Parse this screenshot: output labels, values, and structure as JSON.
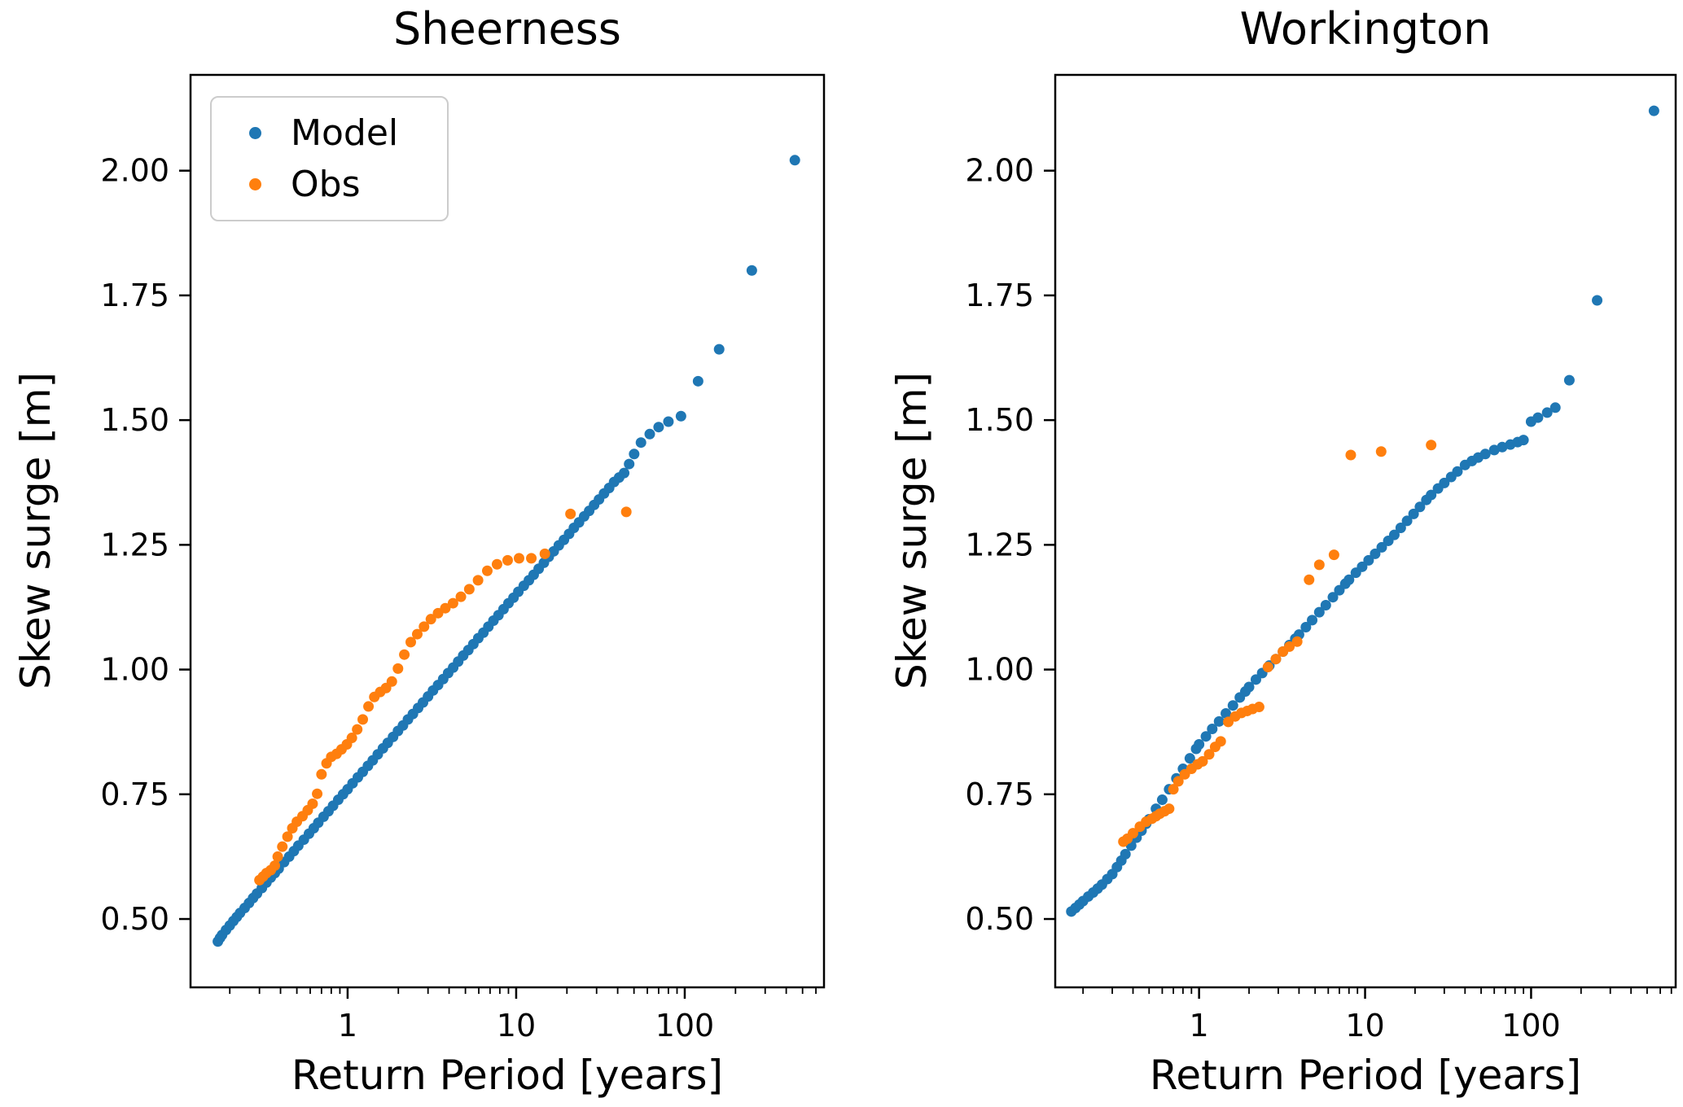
{
  "figure": {
    "background": "#ffffff",
    "text_color": "#000000",
    "axis_color": "#000000"
  },
  "legend": {
    "entries": [
      {
        "label": "Model",
        "color": "#1f77b4"
      },
      {
        "label": "Obs",
        "color": "#ff7f0e"
      }
    ]
  },
  "chart_data": [
    {
      "type": "scatter",
      "title": "Sheerness",
      "xlabel": "Return Period [years]",
      "ylabel": "Skew surge [m]",
      "xscale": "log",
      "xlim": [
        0.117,
        670
      ],
      "ylim": [
        0.363,
        2.192
      ],
      "xticks": [
        1,
        10,
        100
      ],
      "yticks": [
        0.5,
        0.75,
        1.0,
        1.25,
        1.5,
        1.75,
        2.0
      ],
      "grid": false,
      "legend": true,
      "legend_position": "upper-left",
      "series": [
        {
          "name": "Model",
          "color": "#1f77b4",
          "points": [
            [
              0.17,
              0.455
            ],
            [
              0.175,
              0.462
            ],
            [
              0.18,
              0.468
            ],
            [
              0.19,
              0.478
            ],
            [
              0.2,
              0.487
            ],
            [
              0.21,
              0.496
            ],
            [
              0.22,
              0.504
            ],
            [
              0.23,
              0.512
            ],
            [
              0.245,
              0.522
            ],
            [
              0.26,
              0.532
            ],
            [
              0.275,
              0.542
            ],
            [
              0.29,
              0.551
            ],
            [
              0.31,
              0.562
            ],
            [
              0.33,
              0.573
            ],
            [
              0.35,
              0.583
            ],
            [
              0.37,
              0.592
            ],
            [
              0.39,
              0.601
            ],
            [
              0.42,
              0.614
            ],
            [
              0.45,
              0.625
            ],
            [
              0.48,
              0.636
            ],
            [
              0.51,
              0.647
            ],
            [
              0.55,
              0.659
            ],
            [
              0.59,
              0.671
            ],
            [
              0.63,
              0.682
            ],
            [
              0.67,
              0.693
            ],
            [
              0.72,
              0.705
            ],
            [
              0.77,
              0.716
            ],
            [
              0.82,
              0.727
            ],
            [
              0.88,
              0.739
            ],
            [
              0.94,
              0.75
            ],
            [
              1.0,
              0.76
            ],
            [
              1.07,
              0.772
            ],
            [
              1.15,
              0.784
            ],
            [
              1.23,
              0.795
            ],
            [
              1.32,
              0.807
            ],
            [
              1.41,
              0.818
            ],
            [
              1.51,
              0.83
            ],
            [
              1.62,
              0.842
            ],
            [
              1.73,
              0.853
            ],
            [
              1.86,
              0.865
            ],
            [
              1.99,
              0.877
            ],
            [
              2.13,
              0.888
            ],
            [
              2.28,
              0.9
            ],
            [
              2.44,
              0.911
            ],
            [
              2.62,
              0.923
            ],
            [
              2.8,
              0.934
            ],
            [
              3.0,
              0.946
            ],
            [
              3.21,
              0.958
            ],
            [
              3.44,
              0.969
            ],
            [
              3.69,
              0.981
            ],
            [
              3.95,
              0.993
            ],
            [
              4.23,
              1.004
            ],
            [
              4.53,
              1.016
            ],
            [
              4.85,
              1.028
            ],
            [
              5.2,
              1.039
            ],
            [
              5.57,
              1.051
            ],
            [
              5.96,
              1.063
            ],
            [
              6.39,
              1.074
            ],
            [
              6.84,
              1.086
            ],
            [
              7.33,
              1.098
            ],
            [
              7.85,
              1.109
            ],
            [
              8.41,
              1.121
            ],
            [
              9.0,
              1.133
            ],
            [
              9.64,
              1.144
            ],
            [
              10.3,
              1.156
            ],
            [
              11.1,
              1.168
            ],
            [
              11.9,
              1.179
            ],
            [
              12.7,
              1.19
            ],
            [
              13.6,
              1.202
            ],
            [
              14.6,
              1.214
            ],
            [
              15.6,
              1.226
            ],
            [
              16.7,
              1.237
            ],
            [
              17.9,
              1.249
            ],
            [
              19.2,
              1.26
            ],
            [
              20.6,
              1.272
            ],
            [
              22.0,
              1.284
            ],
            [
              23.6,
              1.295
            ],
            [
              25.3,
              1.307
            ],
            [
              27.1,
              1.318
            ],
            [
              29.0,
              1.33
            ],
            [
              31.0,
              1.341
            ],
            [
              33.2,
              1.353
            ],
            [
              35.6,
              1.364
            ],
            [
              38.1,
              1.376
            ],
            [
              40.8,
              1.385
            ],
            [
              43.7,
              1.394
            ],
            [
              46.8,
              1.412
            ],
            [
              50.1,
              1.432
            ],
            [
              55,
              1.455
            ],
            [
              62,
              1.472
            ],
            [
              70,
              1.486
            ],
            [
              80,
              1.497
            ],
            [
              95,
              1.508
            ],
            [
              120,
              1.578
            ],
            [
              160,
              1.642
            ],
            [
              250,
              1.8
            ],
            [
              450,
              2.021
            ]
          ]
        },
        {
          "name": "Obs",
          "color": "#ff7f0e",
          "points": [
            [
              0.3,
              0.578
            ],
            [
              0.315,
              0.585
            ],
            [
              0.33,
              0.592
            ],
            [
              0.35,
              0.598
            ],
            [
              0.37,
              0.607
            ],
            [
              0.385,
              0.625
            ],
            [
              0.41,
              0.645
            ],
            [
              0.44,
              0.665
            ],
            [
              0.47,
              0.682
            ],
            [
              0.5,
              0.695
            ],
            [
              0.54,
              0.706
            ],
            [
              0.58,
              0.718
            ],
            [
              0.62,
              0.731
            ],
            [
              0.66,
              0.751
            ],
            [
              0.7,
              0.79
            ],
            [
              0.75,
              0.812
            ],
            [
              0.8,
              0.825
            ],
            [
              0.86,
              0.831
            ],
            [
              0.92,
              0.84
            ],
            [
              0.99,
              0.85
            ],
            [
              1.06,
              0.863
            ],
            [
              1.14,
              0.88
            ],
            [
              1.23,
              0.9
            ],
            [
              1.33,
              0.926
            ],
            [
              1.44,
              0.945
            ],
            [
              1.56,
              0.955
            ],
            [
              1.69,
              0.963
            ],
            [
              1.83,
              0.976
            ],
            [
              1.99,
              1.002
            ],
            [
              2.17,
              1.03
            ],
            [
              2.37,
              1.055
            ],
            [
              2.59,
              1.071
            ],
            [
              2.84,
              1.086
            ],
            [
              3.12,
              1.101
            ],
            [
              3.44,
              1.113
            ],
            [
              3.8,
              1.123
            ],
            [
              4.22,
              1.133
            ],
            [
              4.7,
              1.146
            ],
            [
              5.27,
              1.161
            ],
            [
              5.94,
              1.179
            ],
            [
              6.74,
              1.198
            ],
            [
              7.7,
              1.211
            ],
            [
              8.9,
              1.219
            ],
            [
              10.4,
              1.223
            ],
            [
              12.3,
              1.223
            ],
            [
              14.8,
              1.232
            ],
            [
              21,
              1.312
            ],
            [
              45,
              1.316
            ]
          ]
        }
      ]
    },
    {
      "type": "scatter",
      "title": "Workington",
      "xlabel": "Return Period [years]",
      "ylabel": "Skew surge [m]",
      "xscale": "log",
      "xlim": [
        0.136,
        743
      ],
      "ylim": [
        0.363,
        2.192
      ],
      "xticks": [
        1,
        10,
        100
      ],
      "yticks": [
        0.5,
        0.75,
        1.0,
        1.25,
        1.5,
        1.75,
        2.0
      ],
      "grid": false,
      "legend": false,
      "series": [
        {
          "name": "Model",
          "color": "#1f77b4",
          "points": [
            [
              0.17,
              0.515
            ],
            [
              0.18,
              0.522
            ],
            [
              0.19,
              0.529
            ],
            [
              0.2,
              0.536
            ],
            [
              0.215,
              0.545
            ],
            [
              0.23,
              0.553
            ],
            [
              0.245,
              0.561
            ],
            [
              0.26,
              0.569
            ],
            [
              0.28,
              0.58
            ],
            [
              0.3,
              0.59
            ],
            [
              0.32,
              0.604
            ],
            [
              0.34,
              0.617
            ],
            [
              0.36,
              0.63
            ],
            [
              0.39,
              0.647
            ],
            [
              0.42,
              0.663
            ],
            [
              0.45,
              0.677
            ],
            [
              0.48,
              0.691
            ],
            [
              0.5,
              0.7
            ],
            [
              0.55,
              0.721
            ],
            [
              0.6,
              0.739
            ],
            [
              0.66,
              0.76
            ],
            [
              0.73,
              0.782
            ],
            [
              0.8,
              0.801
            ],
            [
              0.88,
              0.822
            ],
            [
              0.96,
              0.841
            ],
            [
              1.0,
              0.85
            ],
            [
              1.1,
              0.866
            ],
            [
              1.2,
              0.881
            ],
            [
              1.32,
              0.896
            ],
            [
              1.45,
              0.912
            ],
            [
              1.6,
              0.928
            ],
            [
              1.76,
              0.944
            ],
            [
              1.9,
              0.956
            ],
            [
              2.0,
              0.965
            ],
            [
              2.2,
              0.98
            ],
            [
              2.4,
              0.993
            ],
            [
              2.65,
              1.008
            ],
            [
              2.9,
              1.021
            ],
            [
              3.2,
              1.036
            ],
            [
              3.5,
              1.049
            ],
            [
              3.8,
              1.062
            ],
            [
              4.0,
              1.07
            ],
            [
              4.4,
              1.085
            ],
            [
              4.8,
              1.099
            ],
            [
              5.3,
              1.115
            ],
            [
              5.8,
              1.129
            ],
            [
              6.4,
              1.145
            ],
            [
              7.0,
              1.159
            ],
            [
              7.6,
              1.172
            ],
            [
              8.0,
              1.18
            ],
            [
              8.8,
              1.194
            ],
            [
              9.6,
              1.206
            ],
            [
              10.5,
              1.219
            ],
            [
              11.5,
              1.232
            ],
            [
              12.6,
              1.245
            ],
            [
              13.8,
              1.258
            ],
            [
              15,
              1.27
            ],
            [
              16.4,
              1.284
            ],
            [
              17.9,
              1.298
            ],
            [
              19.6,
              1.312
            ],
            [
              21.4,
              1.326
            ],
            [
              23.4,
              1.34
            ],
            [
              25,
              1.35
            ],
            [
              27.5,
              1.363
            ],
            [
              30,
              1.374
            ],
            [
              33,
              1.386
            ],
            [
              36,
              1.397
            ],
            [
              40,
              1.41
            ],
            [
              44,
              1.418
            ],
            [
              48,
              1.425
            ],
            [
              53,
              1.432
            ],
            [
              60,
              1.44
            ],
            [
              67,
              1.446
            ],
            [
              75,
              1.451
            ],
            [
              83,
              1.456
            ],
            [
              90,
              1.46
            ],
            [
              100,
              1.497
            ],
            [
              110,
              1.505
            ],
            [
              125,
              1.515
            ],
            [
              140,
              1.525
            ],
            [
              170,
              1.58
            ],
            [
              250,
              1.74
            ],
            [
              550,
              2.12
            ]
          ]
        },
        {
          "name": "Obs",
          "color": "#ff7f0e",
          "points": [
            [
              0.35,
              0.655
            ],
            [
              0.37,
              0.661
            ],
            [
              0.4,
              0.672
            ],
            [
              0.44,
              0.685
            ],
            [
              0.48,
              0.695
            ],
            [
              0.52,
              0.701
            ],
            [
              0.55,
              0.706
            ],
            [
              0.58,
              0.711
            ],
            [
              0.62,
              0.716
            ],
            [
              0.66,
              0.721
            ],
            [
              0.7,
              0.76
            ],
            [
              0.75,
              0.776
            ],
            [
              0.82,
              0.79
            ],
            [
              0.9,
              0.801
            ],
            [
              0.98,
              0.81
            ],
            [
              1.05,
              0.816
            ],
            [
              1.15,
              0.83
            ],
            [
              1.25,
              0.845
            ],
            [
              1.35,
              0.856
            ],
            [
              1.5,
              0.895
            ],
            [
              1.65,
              0.906
            ],
            [
              1.8,
              0.913
            ],
            [
              1.95,
              0.917
            ],
            [
              2.1,
              0.921
            ],
            [
              2.3,
              0.925
            ],
            [
              2.6,
              1.005
            ],
            [
              2.9,
              1.021
            ],
            [
              3.2,
              1.036
            ],
            [
              3.5,
              1.046
            ],
            [
              3.9,
              1.056
            ],
            [
              4.6,
              1.18
            ],
            [
              5.3,
              1.21
            ],
            [
              6.5,
              1.23
            ],
            [
              8.2,
              1.43
            ],
            [
              12.5,
              1.437
            ],
            [
              25,
              1.45
            ]
          ]
        }
      ]
    }
  ]
}
